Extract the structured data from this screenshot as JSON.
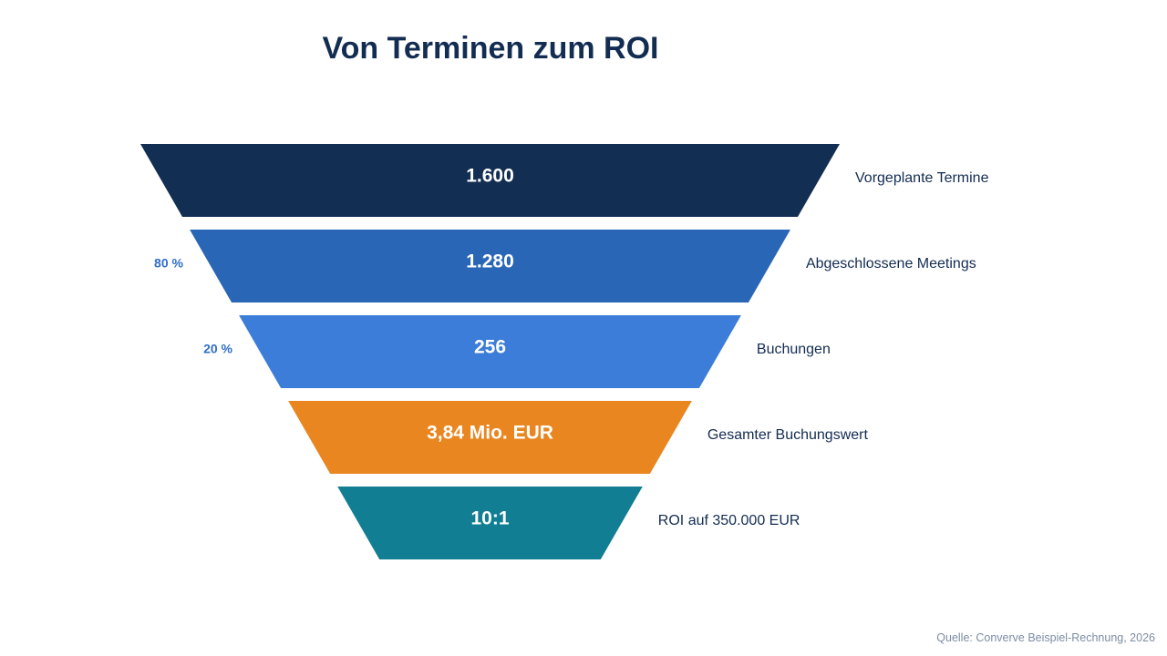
{
  "title": "Von Terminen zum ROI",
  "source": "Quelle: Converve Beispiel-Rechnung, 2026",
  "colors": {
    "title": "#132c52",
    "label": "#132c52",
    "value_text": "#ffffff",
    "rate": "#2f6fc9",
    "source": "#7d8da4"
  },
  "chart_data": {
    "type": "funnel",
    "title": "Von Terminen zum ROI",
    "stages": [
      {
        "label": "Vorgeplante Termine",
        "value_text": "1.600",
        "value": 1600,
        "color": "#132e53",
        "rate": ""
      },
      {
        "label": "Abgeschlossene Meetings",
        "value_text": "1.280",
        "value": 1280,
        "color": "#2a66b6",
        "rate": "80 %"
      },
      {
        "label": "Buchungen",
        "value_text": "256",
        "value": 256,
        "color": "#3b7dd8",
        "rate": "20 %"
      },
      {
        "label": "Gesamter Buchungswert",
        "value_text": "3,84 Mio. EUR",
        "value": 3840000,
        "color": "#e98620",
        "rate": ""
      },
      {
        "label": "ROI auf 350.000 EUR",
        "value_text": "10:1",
        "value": 10,
        "color": "#117e94",
        "rate": ""
      }
    ]
  }
}
